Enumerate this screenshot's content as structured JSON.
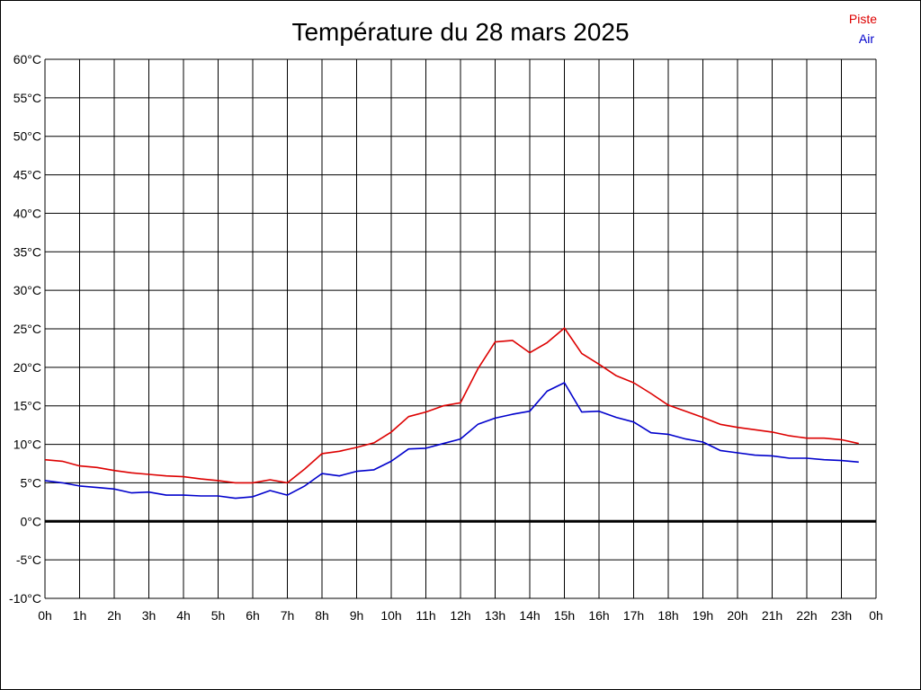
{
  "chart_data": {
    "type": "line",
    "title": "Température du 28 mars 2025",
    "xlabel": "",
    "ylabel": "",
    "x_ticks": [
      "0h",
      "1h",
      "2h",
      "3h",
      "4h",
      "5h",
      "6h",
      "7h",
      "8h",
      "9h",
      "10h",
      "11h",
      "12h",
      "13h",
      "14h",
      "15h",
      "16h",
      "17h",
      "18h",
      "19h",
      "20h",
      "21h",
      "22h",
      "23h",
      "0h"
    ],
    "y_ticks": [
      "60°C",
      "55°C",
      "50°C",
      "45°C",
      "40°C",
      "35°C",
      "30°C",
      "25°C",
      "20°C",
      "15°C",
      "10°C",
      "5°C",
      "0°C",
      "-5°C",
      "-10°C"
    ],
    "ylim": [
      -10,
      60
    ],
    "xlim": [
      0,
      24
    ],
    "grid": true,
    "legend_position": "top-right",
    "x": [
      0,
      0.5,
      1,
      1.5,
      2,
      2.5,
      3,
      3.5,
      4,
      4.5,
      5,
      5.5,
      6,
      6.5,
      7,
      7.5,
      8,
      8.5,
      9,
      9.5,
      10,
      10.5,
      11,
      11.5,
      12,
      12.5,
      13,
      13.5,
      14,
      14.5,
      15,
      15.5,
      16,
      16.5,
      17,
      17.5,
      18,
      18.5,
      19,
      19.5,
      20,
      20.5,
      21,
      21.5,
      22,
      22.5,
      23,
      23.5
    ],
    "series": [
      {
        "name": "Piste",
        "color": "#dd0000",
        "values": [
          8.0,
          7.8,
          7.2,
          7.0,
          6.6,
          6.3,
          6.1,
          5.9,
          5.8,
          5.5,
          5.3,
          5.0,
          5.0,
          5.4,
          5.0,
          6.8,
          8.8,
          9.1,
          9.6,
          10.2,
          11.6,
          13.6,
          14.2,
          15.0,
          15.4,
          19.8,
          23.3,
          23.5,
          21.9,
          23.2,
          25.1,
          21.8,
          20.4,
          18.9,
          18.0,
          16.6,
          15.1,
          14.3,
          13.5,
          12.6,
          12.2,
          11.9,
          11.6,
          11.1,
          10.8,
          10.8,
          10.6,
          10.1
        ]
      },
      {
        "name": "Air",
        "color": "#0000cc",
        "values": [
          5.3,
          5.0,
          4.6,
          4.4,
          4.2,
          3.7,
          3.8,
          3.4,
          3.4,
          3.3,
          3.3,
          3.0,
          3.2,
          4.0,
          3.4,
          4.6,
          6.2,
          5.9,
          6.5,
          6.7,
          7.8,
          9.4,
          9.5,
          10.1,
          10.7,
          12.6,
          13.4,
          13.9,
          14.3,
          16.9,
          18.0,
          14.2,
          14.3,
          13.5,
          12.9,
          11.5,
          11.3,
          10.7,
          10.3,
          9.2,
          8.9,
          8.6,
          8.5,
          8.2,
          8.2,
          8.0,
          7.9,
          7.7
        ]
      }
    ],
    "baseline_value": 0
  }
}
